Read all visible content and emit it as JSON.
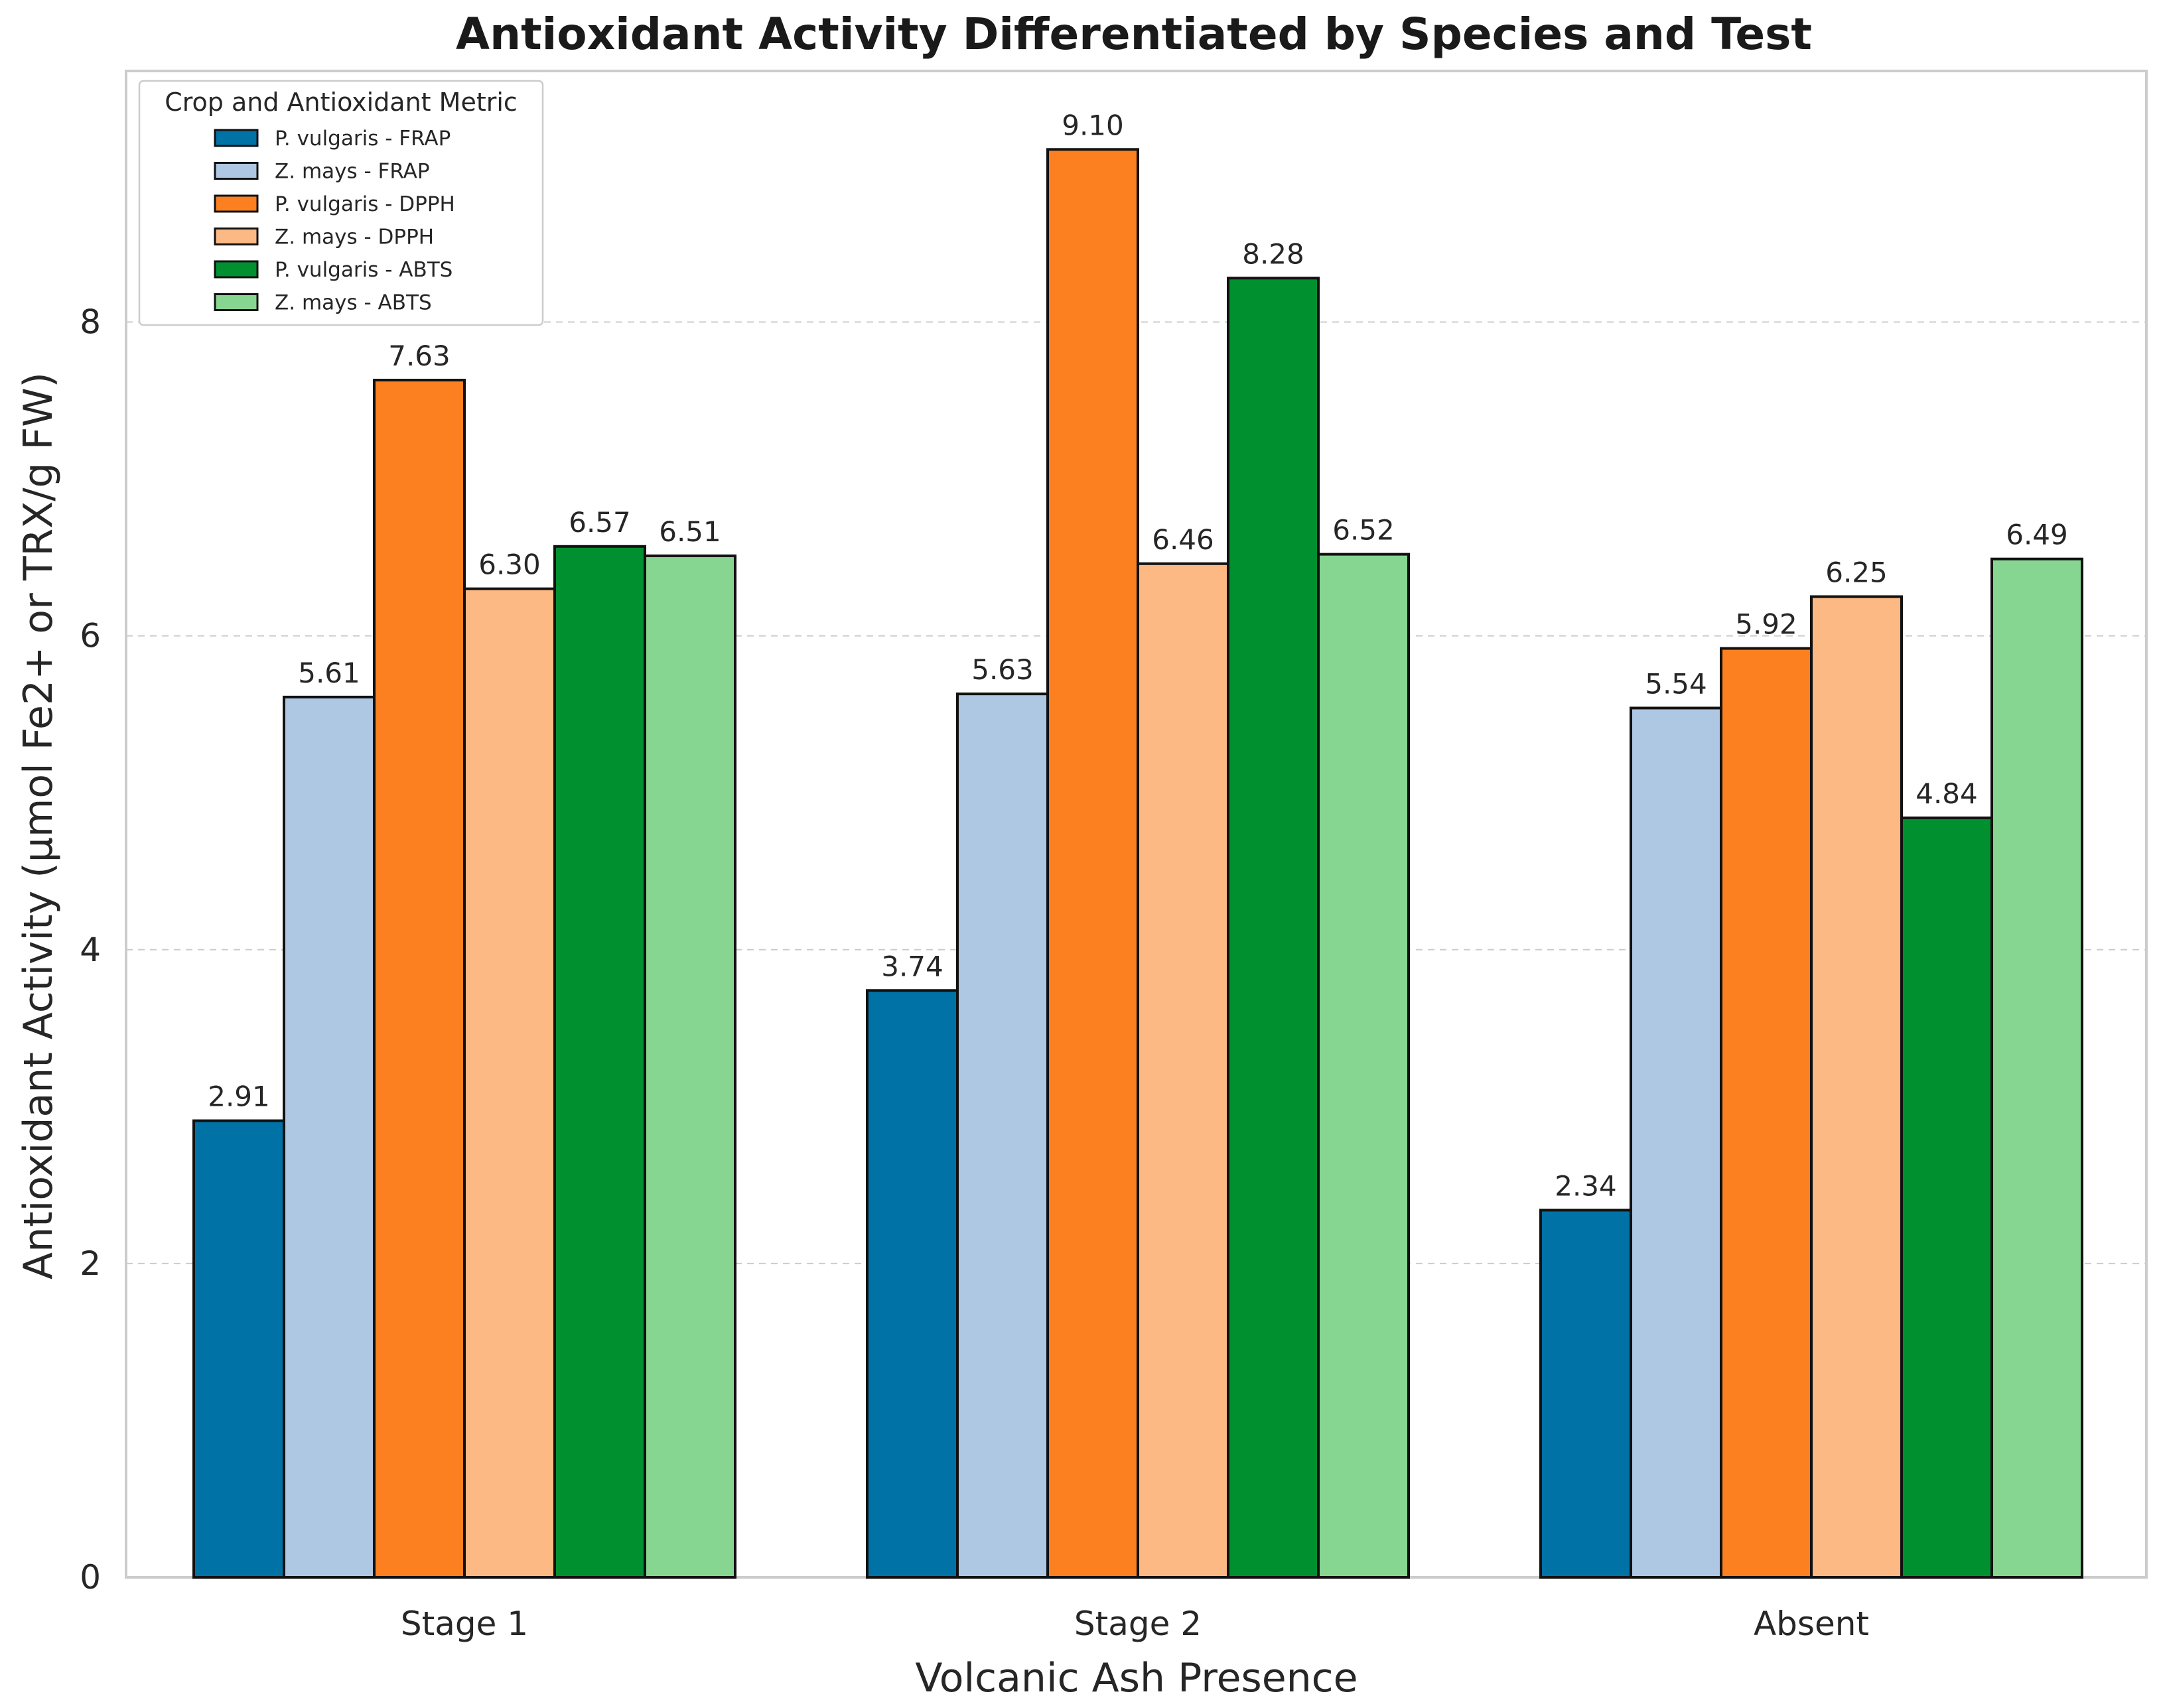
{
  "chart_data": {
    "type": "bar",
    "title": "Antioxidant Activity Differentiated by Species and Test",
    "xlabel": "Volcanic Ash Presence",
    "ylabel": "Antioxidant Activity (μmol Fe2+ or TRX/g FW)",
    "categories": [
      "Stage 1",
      "Stage 2",
      "Absent"
    ],
    "ylim": [
      0,
      9.6
    ],
    "yticks": [
      0,
      2,
      4,
      6,
      8
    ],
    "grid": "horizontal dashed",
    "legend": {
      "title": "Crop and Antioxidant Metric",
      "position": "top-left"
    },
    "series": [
      {
        "name": "P. vulgaris - FRAP",
        "color": "#0072a6",
        "values": [
          2.91,
          3.74,
          2.34
        ]
      },
      {
        "name": "Z. mays - FRAP",
        "color": "#aec7e3",
        "values": [
          5.61,
          5.63,
          5.54
        ]
      },
      {
        "name": "P. vulgaris - DPPH",
        "color": "#fc8020",
        "values": [
          7.63,
          9.1,
          5.92
        ]
      },
      {
        "name": "Z. mays - DPPH",
        "color": "#fdb983",
        "values": [
          6.3,
          6.46,
          6.25
        ]
      },
      {
        "name": "P. vulgaris - ABTS",
        "color": "#009030",
        "values": [
          6.57,
          8.28,
          4.84
        ]
      },
      {
        "name": "Z. mays - ABTS",
        "color": "#86d692",
        "values": [
          6.51,
          6.52,
          6.49
        ]
      }
    ]
  }
}
